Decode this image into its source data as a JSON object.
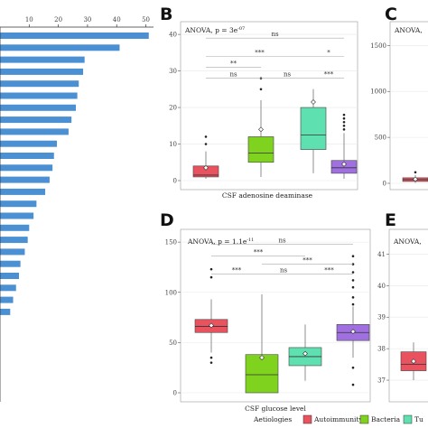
{
  "panel_A": {
    "x_ticks": [
      "10",
      "20",
      "30",
      "40",
      "50"
    ]
  },
  "panel_B": {
    "letter": "B",
    "anova": "ANOVA, p = 3e",
    "anova_exp": "-07",
    "xlabel": "CSF adenosine deaminase"
  },
  "panel_C": {
    "letter": "C",
    "anova": "ANOVA,"
  },
  "panel_D": {
    "letter": "D",
    "anova": "ANOVA, p = 1.1e",
    "anova_exp": "-11",
    "xlabel": "CSF glucose level"
  },
  "panel_E": {
    "letter": "E",
    "anova": "ANOVA,"
  },
  "legend": {
    "title": "Aetiologies",
    "items": [
      "Autoimmunity",
      "Bacteria",
      "Tu"
    ]
  },
  "colors": {
    "bar": "#4a90d2",
    "autoimmunity": "#e8535f",
    "bacteria": "#7fd21e",
    "tuberculosis": "#5ee0b0",
    "viral": "#a070e0"
  },
  "chart_data": [
    {
      "type": "bar",
      "panel": "A",
      "orientation": "horizontal",
      "x_ticks": [
        10,
        20,
        30,
        40,
        50
      ],
      "xlim": [
        0,
        52
      ],
      "values": [
        51,
        41,
        29,
        28.5,
        27,
        26.5,
        26,
        24.5,
        23.5,
        19.5,
        18.5,
        18,
        17,
        15.5,
        12.5,
        11.5,
        10,
        9.5,
        8.5,
        7,
        6.5,
        5.5,
        4.5,
        3.5
      ]
    },
    {
      "type": "box",
      "panel": "B",
      "title": "ANOVA, p = 3e-07",
      "xlabel": "CSF adenosine deaminase",
      "y_ticks": [
        0,
        10,
        20,
        30,
        40
      ],
      "ylim": [
        0,
        42
      ],
      "series": [
        {
          "name": "Autoimmunity",
          "q1": 1,
          "median": 1.5,
          "q3": 4,
          "whisker_low": 0.5,
          "whisker_high": 8,
          "mean": 3.5,
          "outliers": [
            10,
            12
          ]
        },
        {
          "name": "Bacteria",
          "q1": 5,
          "median": 7.5,
          "q3": 12,
          "whisker_low": 1,
          "whisker_high": 22,
          "mean": 14,
          "outliers": [
            25,
            28
          ]
        },
        {
          "name": "Tuberculosis",
          "q1": 8.5,
          "median": 12.5,
          "q3": 20,
          "whisker_low": 2,
          "whisker_high": 25,
          "mean": 21.5,
          "outliers": []
        },
        {
          "name": "Viral",
          "q1": 2,
          "median": 3.5,
          "q3": 5.5,
          "whisker_low": 0.5,
          "whisker_high": 13,
          "mean": 4.5,
          "outliers": [
            14,
            15,
            16,
            17,
            18
          ]
        }
      ],
      "comparisons": [
        {
          "pair": [
            1,
            4
          ],
          "label": "ns",
          "y": 39
        },
        {
          "pair": [
            1,
            3
          ],
          "label": "***",
          "y": 34
        },
        {
          "pair": [
            3,
            4
          ],
          "label": "*",
          "y": 34
        },
        {
          "pair": [
            1,
            2
          ],
          "label": "**",
          "y": 31
        },
        {
          "pair": [
            1,
            2
          ],
          "label": "ns",
          "y": 28
        },
        {
          "pair": [
            2,
            3
          ],
          "label": "ns",
          "y": 28
        },
        {
          "pair": [
            3,
            4
          ],
          "label": "***",
          "y": 28
        }
      ]
    },
    {
      "type": "box",
      "panel": "C",
      "y_ticks": [
        0,
        500,
        1000,
        1500
      ],
      "ylim": [
        0,
        1700
      ],
      "series": [
        {
          "name": "Autoimmunity",
          "q1": 20,
          "median": 40,
          "q3": 60,
          "whisker_low": 5,
          "whisker_high": 90,
          "mean": 45,
          "outliers": [
            120
          ]
        }
      ]
    },
    {
      "type": "box",
      "panel": "D",
      "title": "ANOVA, p = 1.1e-11",
      "xlabel": "CSF glucose level",
      "y_ticks": [
        0,
        50,
        100,
        150
      ],
      "ylim": [
        0,
        160
      ],
      "series": [
        {
          "name": "Autoimmunity",
          "q1": 60,
          "median": 66,
          "q3": 73,
          "whisker_low": 40,
          "whisker_high": 93,
          "mean": 67,
          "outliers": [
            30,
            35,
            115,
            123
          ]
        },
        {
          "name": "Bacteria",
          "q1": 0,
          "median": 18,
          "q3": 38,
          "whisker_low": 0,
          "whisker_high": 98,
          "mean": 35,
          "outliers": []
        },
        {
          "name": "Tuberculosis",
          "q1": 27,
          "median": 36,
          "q3": 45,
          "whisker_low": 12,
          "whisker_high": 68,
          "mean": 39,
          "outliers": []
        },
        {
          "name": "Viral",
          "q1": 52,
          "median": 60,
          "q3": 68,
          "whisker_low": 35,
          "whisker_high": 86,
          "mean": 61,
          "outliers": [
            8,
            25,
            88,
            95,
            105,
            112,
            120,
            128,
            136
          ]
        }
      ],
      "comparisons": [
        {
          "pair": [
            1,
            4
          ],
          "label": "ns",
          "y": 148
        },
        {
          "pair": [
            1,
            3
          ],
          "label": "***",
          "y": 136
        },
        {
          "pair": [
            2,
            4
          ],
          "label": "***",
          "y": 128
        },
        {
          "pair": [
            1,
            2
          ],
          "label": "***",
          "y": 118
        },
        {
          "pair": [
            2,
            3
          ],
          "label": "ns",
          "y": 118
        },
        {
          "pair": [
            3,
            4
          ],
          "label": "***",
          "y": 118
        }
      ]
    },
    {
      "type": "box",
      "panel": "E",
      "y_ticks": [
        37,
        38,
        39,
        40,
        41
      ],
      "ylim": [
        36.6,
        41.7
      ],
      "series": [
        {
          "name": "Autoimmunity",
          "q1": 37.3,
          "median": 37.5,
          "q3": 37.9,
          "whisker_low": 37.0,
          "whisker_high": 38.2,
          "mean": 37.6,
          "outliers": []
        }
      ]
    }
  ]
}
